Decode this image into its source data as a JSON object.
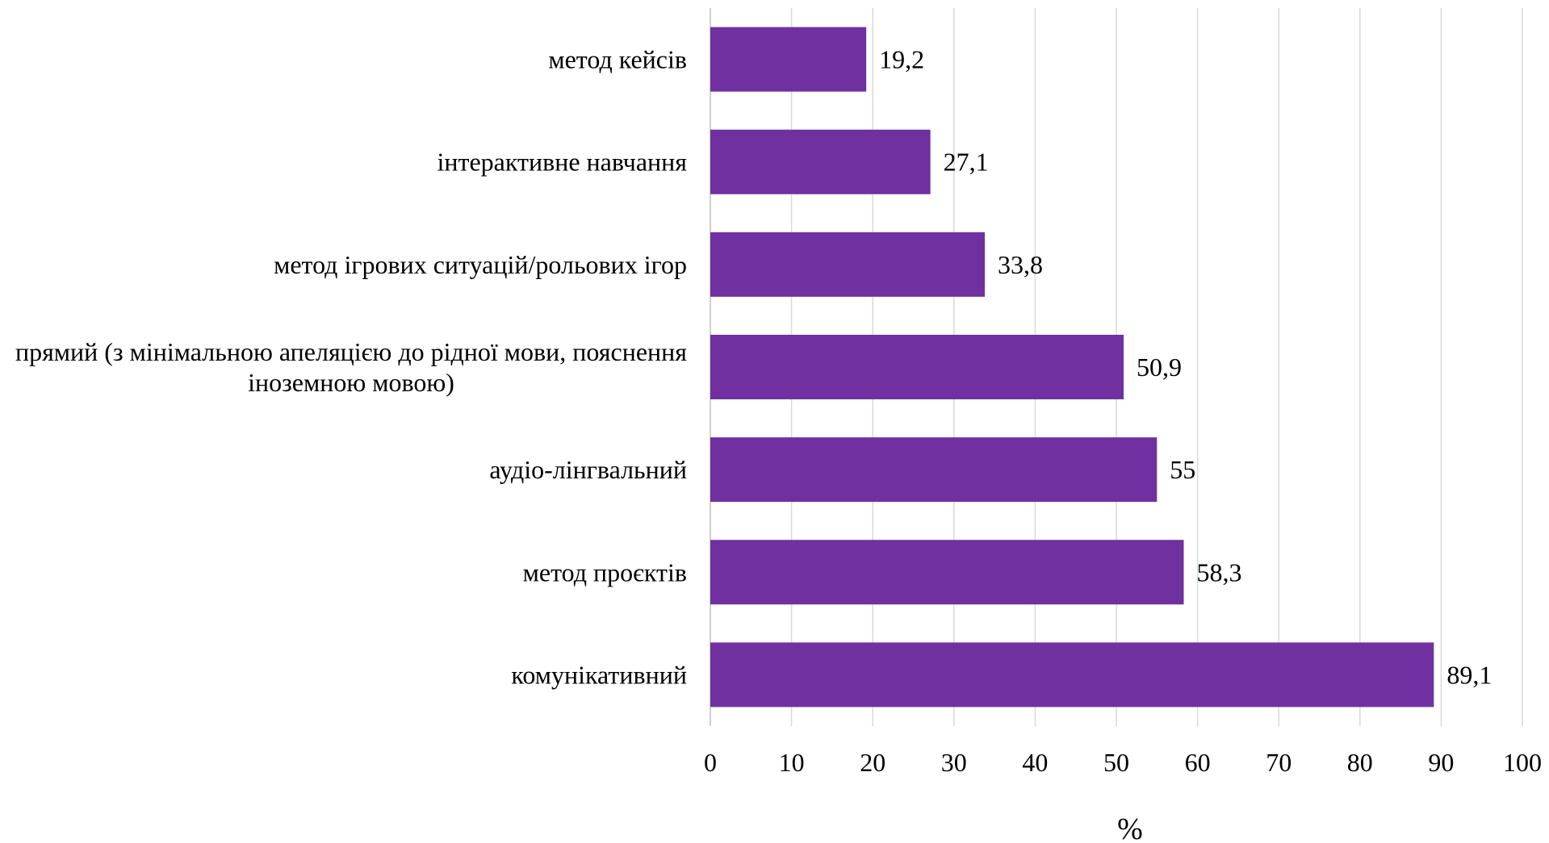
{
  "chart_data": {
    "type": "bar",
    "orientation": "horizontal",
    "categories": [
      "метод кейсів",
      "інтерактивне навчання",
      "метод ігрових ситуацій/рольових ігор",
      "прямий (з мінімальною апеляцією до рідної мови, пояснення іноземною мовою)",
      "аудіо-лінгвальний",
      "метод проєктів",
      "комунікативний"
    ],
    "category_label_lines": [
      [
        "метод кейсів"
      ],
      [
        "інтерактивне навчання"
      ],
      [
        "метод ігрових ситуацій/рольових ігор"
      ],
      [
        "прямий (з мінімальною апеляцією до рідної мови, пояснення",
        "іноземною мовою)"
      ],
      [
        "аудіо-лінгвальний"
      ],
      [
        "метод проєктів"
      ],
      [
        "комунікативний"
      ]
    ],
    "values": [
      19.2,
      27.1,
      33.8,
      50.9,
      55,
      58.3,
      89.1
    ],
    "data_labels": [
      "19,2",
      "27,1",
      "33,8",
      "50,9",
      "55",
      "58,3",
      "89,1"
    ],
    "xlabel": "%",
    "ylabel": "",
    "title": "",
    "xlim": [
      0,
      100
    ],
    "x_ticks": [
      "0",
      "10",
      "20",
      "30",
      "40",
      "50",
      "60",
      "70",
      "80",
      "90",
      "100"
    ],
    "grid": true,
    "legend": "none",
    "bar_color": "#7030a0"
  }
}
